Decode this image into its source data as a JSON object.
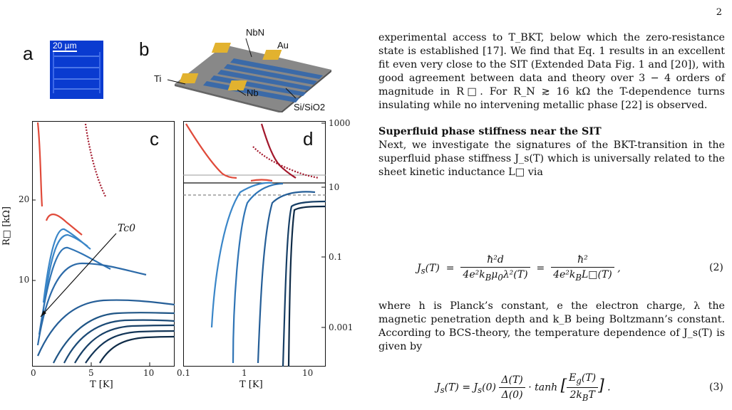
{
  "page_number": "2",
  "figure": {
    "panel_a": {
      "letter": "a",
      "scalebar": "20 µm"
    },
    "panel_b": {
      "letter": "b",
      "labels": {
        "nbn": "NbN",
        "au": "Au",
        "ti": "Ti",
        "nb": "Nb",
        "substrate": "Si/SiO2"
      }
    },
    "panel_c": {
      "letter": "c",
      "ylabel": "R□ [kΩ]",
      "xlabel": "T [K]",
      "annotation": "Tc0",
      "y_ticks": [
        "20",
        "10"
      ],
      "x_ticks": [
        "0",
        "5",
        "10"
      ]
    },
    "panel_d": {
      "letter": "d",
      "xlabel": "T [K]",
      "x_ticks": [
        "0.1",
        "1",
        "10"
      ],
      "y_ticks_top": [
        "1000"
      ],
      "y_ticks_bottom": [
        "10",
        "0.1",
        "0.001"
      ]
    }
  },
  "text": {
    "para1": "experimental access to T_BKT, below which the zero-resistance state is established [17]. We find that Eq. 1 results in an excellent fit even very close to the SIT (Extended Data Fig. 1 and [20]), with good agreement between data and theory over 3 − 4 orders of magnitude in R□. For R_N ≳ 16 kΩ the T-dependence turns insulating while no intervening metallic phase [22] is observed.",
    "heading": "Superfluid phase stiffness near the SIT",
    "para2": "Next, we investigate the signatures of the BKT-transition in the superfluid phase stiffness J_s(T) which is universally related to the sheet kinetic inductance L□ via",
    "eq2_number": "(2)",
    "para3": "where h is Planck’s constant, e the electron charge, λ the magnetic penetration depth and k_B being Boltzmann’s constant. According to BCS-theory, the temperature dependence of J_s(T) is given by",
    "eq3_number": "(3)"
  }
}
